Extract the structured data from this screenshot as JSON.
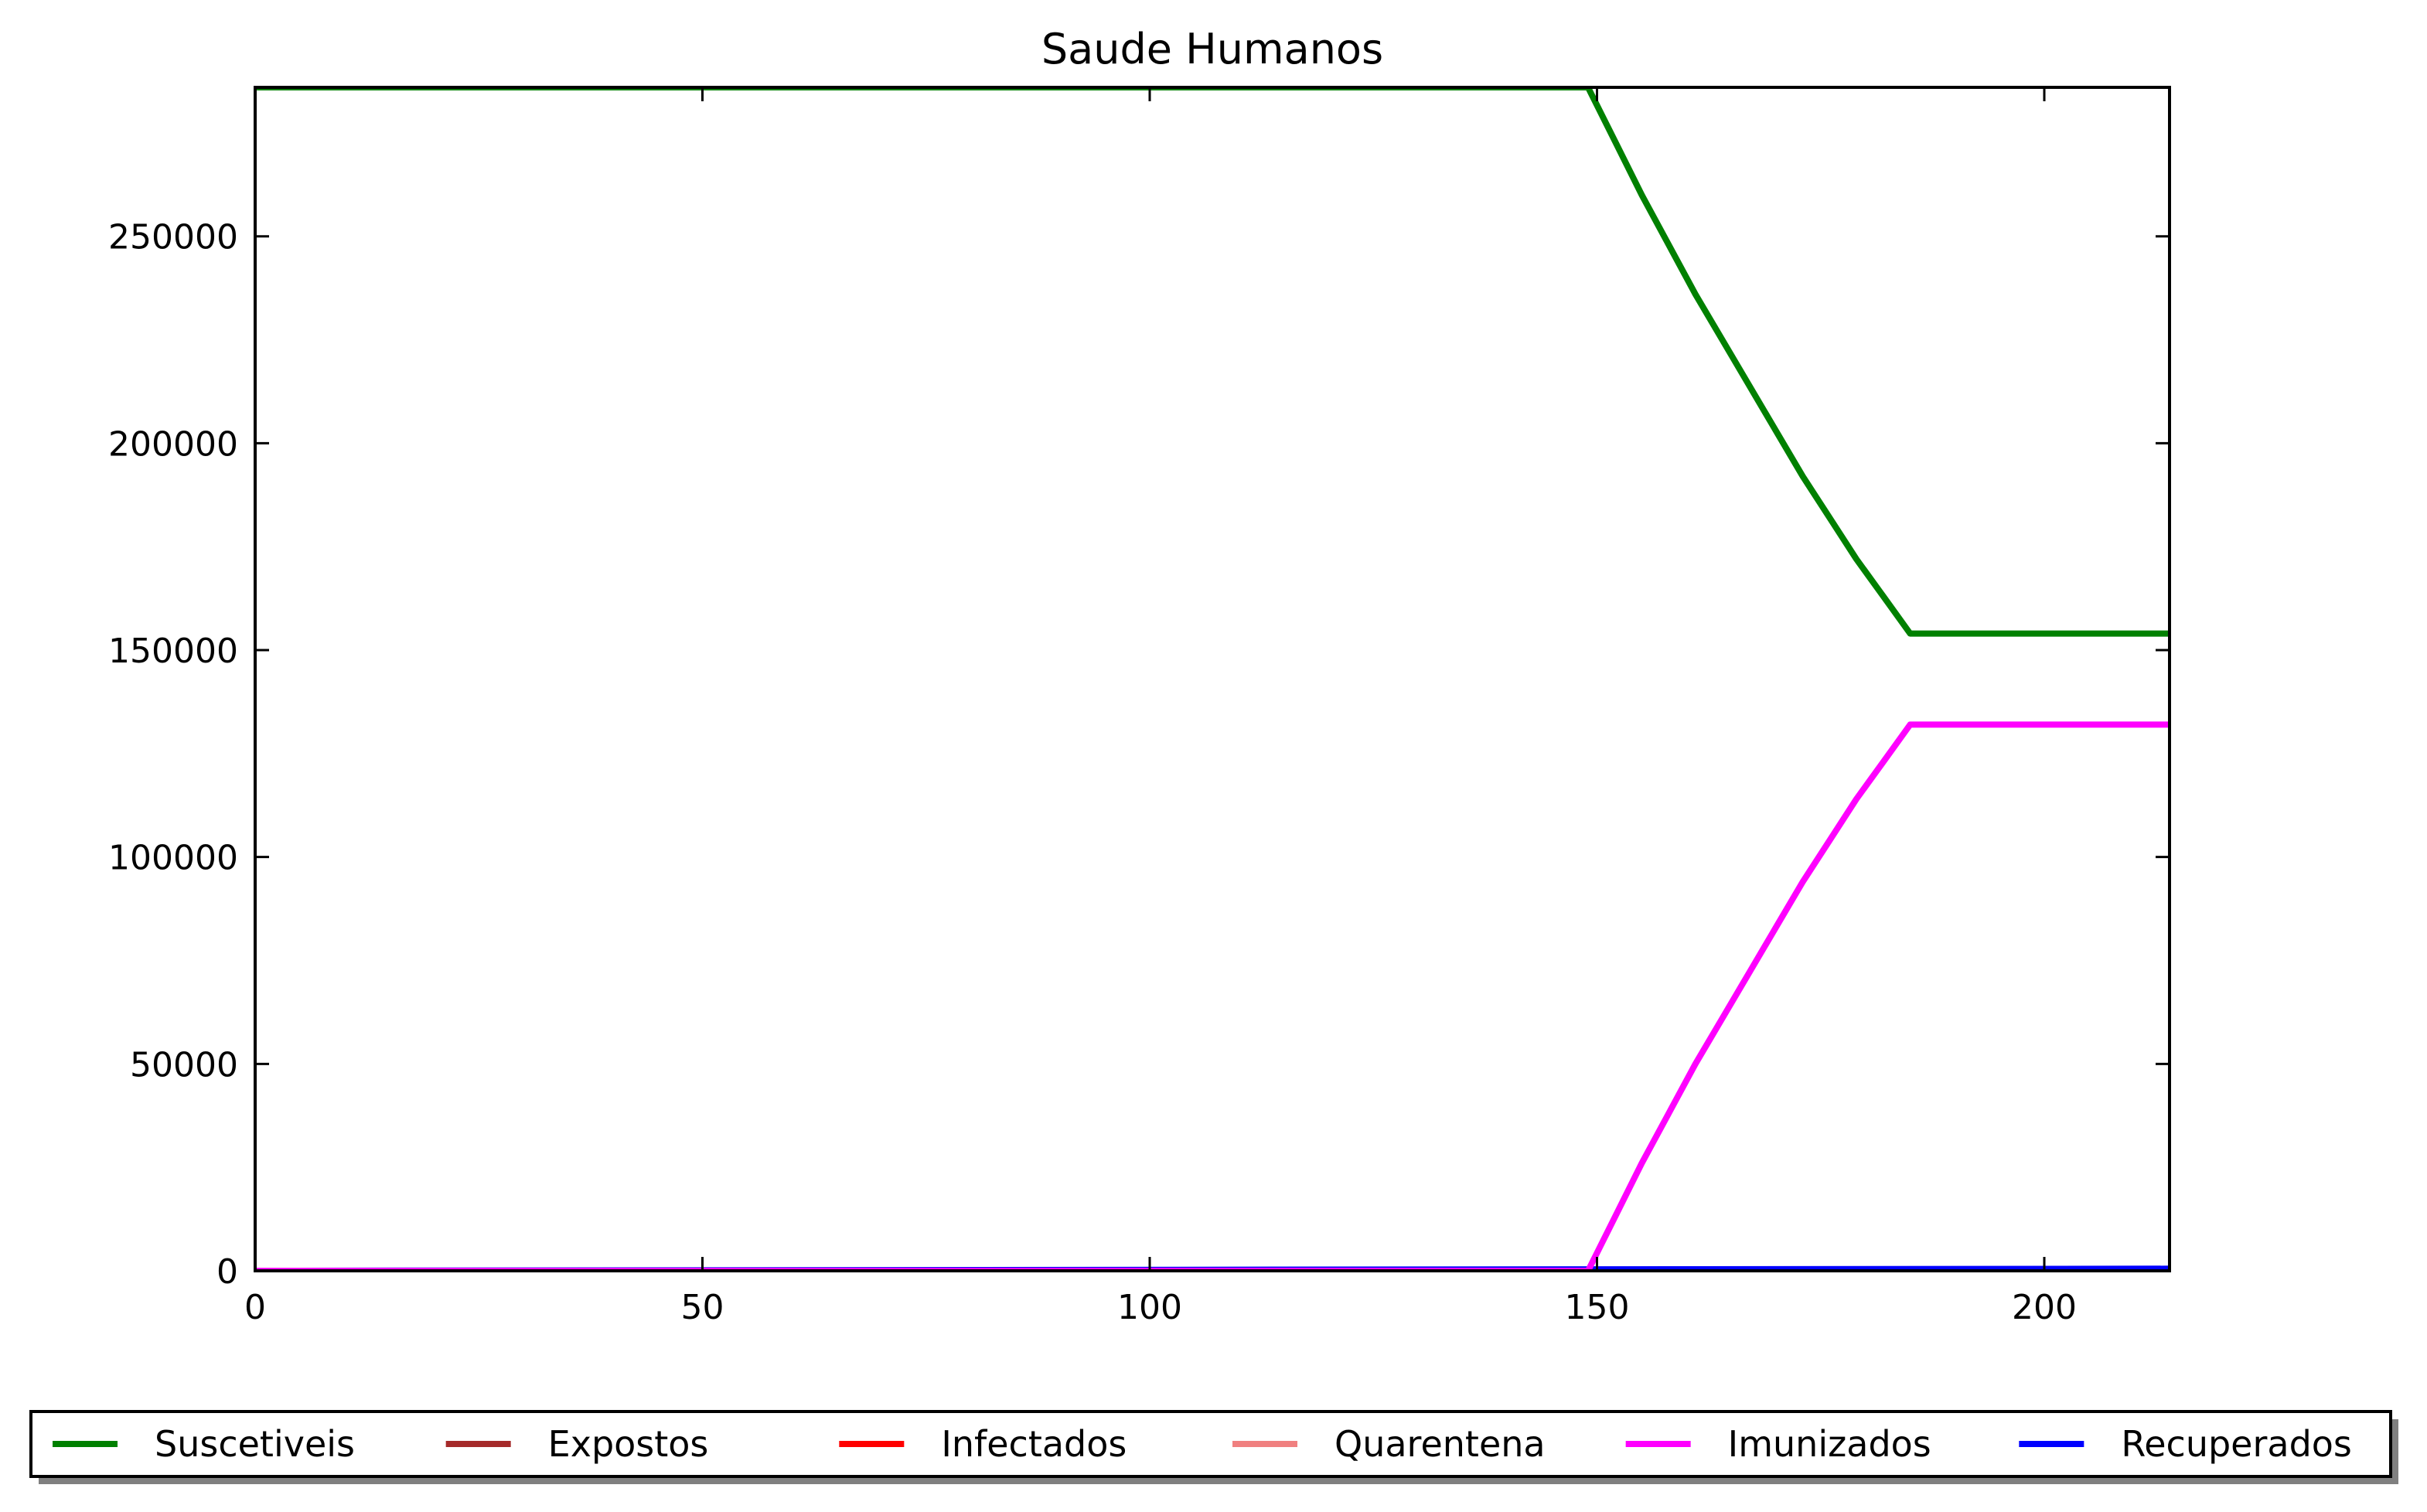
{
  "chart_data": {
    "type": "line",
    "title": "Saude Humanos",
    "xlabel": "",
    "ylabel": "",
    "xlim": [
      0,
      214
    ],
    "ylim": [
      0,
      286000
    ],
    "xticks": [
      0,
      50,
      100,
      150,
      200
    ],
    "yticks": [
      0,
      50000,
      100000,
      150000,
      200000,
      250000
    ],
    "grid": false,
    "legend_position": "bottom",
    "series": [
      {
        "name": "Suscetiveis",
        "color": "#008000",
        "points": [
          [
            0,
            286000
          ],
          [
            149,
            286000
          ],
          [
            152,
            273000
          ],
          [
            155,
            260000
          ],
          [
            158,
            248000
          ],
          [
            161,
            236000
          ],
          [
            164,
            225000
          ],
          [
            167,
            214000
          ],
          [
            170,
            203000
          ],
          [
            173,
            192000
          ],
          [
            176,
            182000
          ],
          [
            179,
            172000
          ],
          [
            182,
            163000
          ],
          [
            185,
            154000
          ],
          [
            214,
            154000
          ]
        ]
      },
      {
        "name": "Expostos",
        "color": "#a52a2a",
        "points": [
          [
            0,
            0
          ],
          [
            214,
            0
          ]
        ]
      },
      {
        "name": "Infectados",
        "color": "#ff0000",
        "points": [
          [
            0,
            0
          ],
          [
            214,
            0
          ]
        ]
      },
      {
        "name": "Quarentena",
        "color": "#f08080",
        "points": [
          [
            0,
            0
          ],
          [
            214,
            0
          ]
        ]
      },
      {
        "name": "Imunizados",
        "color": "#ff00ff",
        "points": [
          [
            0,
            0
          ],
          [
            149,
            0
          ],
          [
            152,
            13000
          ],
          [
            155,
            26000
          ],
          [
            158,
            38000
          ],
          [
            161,
            50000
          ],
          [
            164,
            61000
          ],
          [
            167,
            72000
          ],
          [
            170,
            83000
          ],
          [
            173,
            94000
          ],
          [
            176,
            104000
          ],
          [
            179,
            114000
          ],
          [
            182,
            123000
          ],
          [
            185,
            132000
          ],
          [
            214,
            132000
          ]
        ]
      },
      {
        "name": "Recuperados",
        "color": "#0000ff",
        "points": [
          [
            0,
            0
          ],
          [
            214,
            500
          ]
        ]
      }
    ]
  }
}
